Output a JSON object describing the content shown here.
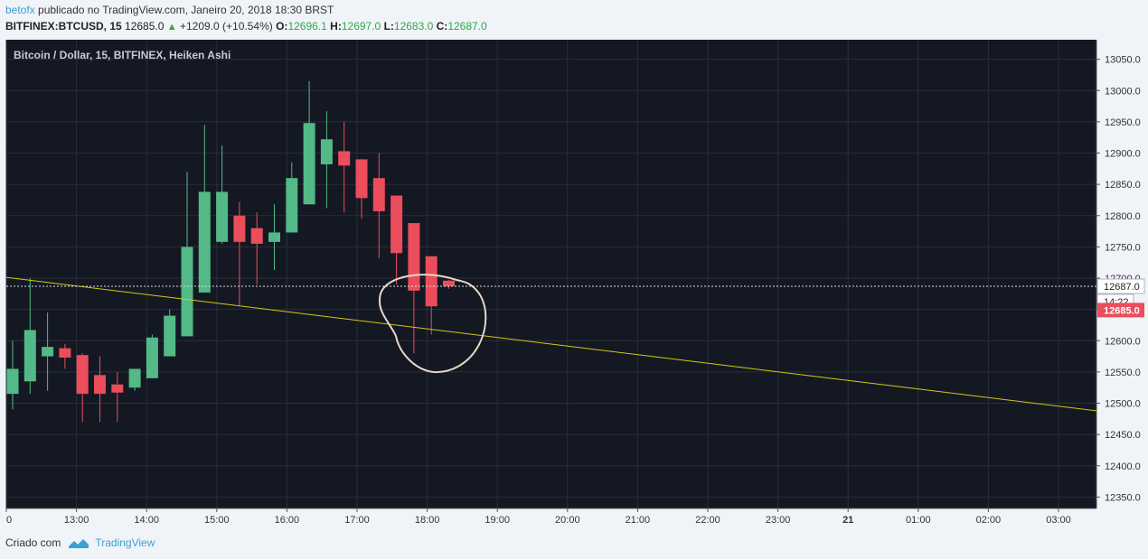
{
  "header": {
    "author": "betofx",
    "published_text": " publicado no TradingView.com, Janeiro 20, 2018 18:30 BRST",
    "symbol": "BITFINEX:BTCUSD, 15",
    "last": "12685.0",
    "change": "+1209.0 (+10.54%)",
    "o_label": "O:",
    "o_value": "12696.1",
    "h_label": "H:",
    "h_value": "12697.0",
    "l_label": "L:",
    "l_value": "12683.0",
    "c_label": "C:",
    "c_value": "12687.0"
  },
  "chart_data": {
    "type": "candlestick",
    "title": "Bitcoin / Dollar, 15, BITFINEX, Heiken Ashi",
    "y_ticks": [
      12350,
      12400,
      12450,
      12500,
      12550,
      12600,
      12650,
      12700,
      12750,
      12800,
      12850,
      12900,
      12950,
      13000,
      13050
    ],
    "x_ticks": [
      "0",
      "13:00",
      "14:00",
      "15:00",
      "16:00",
      "17:00",
      "18:00",
      "19:00",
      "20:00",
      "21:00",
      "22:00",
      "23:00",
      "21",
      "01:00",
      "02:00",
      "03:00"
    ],
    "ylim": [
      12315,
      13080
    ],
    "candles": [
      {
        "o": 12515,
        "h": 12600,
        "l": 12490,
        "c": 12555
      },
      {
        "o": 12535,
        "h": 12700,
        "l": 12515,
        "c": 12617
      },
      {
        "o": 12575,
        "h": 12645,
        "l": 12520,
        "c": 12590
      },
      {
        "o": 12588,
        "h": 12595,
        "l": 12555,
        "c": 12573
      },
      {
        "o": 12577,
        "h": 12580,
        "l": 12470,
        "c": 12515
      },
      {
        "o": 12545,
        "h": 12575,
        "l": 12470,
        "c": 12515
      },
      {
        "o": 12530,
        "h": 12550,
        "l": 12470,
        "c": 12517
      },
      {
        "o": 12525,
        "h": 12555,
        "l": 12520,
        "c": 12555
      },
      {
        "o": 12540,
        "h": 12610,
        "l": 12540,
        "c": 12605
      },
      {
        "o": 12575,
        "h": 12650,
        "l": 12575,
        "c": 12640
      },
      {
        "o": 12607,
        "h": 12870,
        "l": 12607,
        "c": 12750
      },
      {
        "o": 12677,
        "h": 12945,
        "l": 12677,
        "c": 12838
      },
      {
        "o": 12758,
        "h": 12912,
        "l": 12755,
        "c": 12838
      },
      {
        "o": 12800,
        "h": 12822,
        "l": 12655,
        "c": 12758
      },
      {
        "o": 12780,
        "h": 12805,
        "l": 12690,
        "c": 12755
      },
      {
        "o": 12758,
        "h": 12818,
        "l": 12713,
        "c": 12773
      },
      {
        "o": 12773,
        "h": 12885,
        "l": 12773,
        "c": 12860
      },
      {
        "o": 12818,
        "h": 13015,
        "l": 12818,
        "c": 12948
      },
      {
        "o": 12882,
        "h": 12967,
        "l": 12812,
        "c": 12922
      },
      {
        "o": 12903,
        "h": 12950,
        "l": 12805,
        "c": 12880
      },
      {
        "o": 12890,
        "h": 12890,
        "l": 12795,
        "c": 12828
      },
      {
        "o": 12860,
        "h": 12900,
        "l": 12732,
        "c": 12807
      },
      {
        "o": 12832,
        "h": 12832,
        "l": 12690,
        "c": 12740
      },
      {
        "o": 12788,
        "h": 12788,
        "l": 12580,
        "c": 12680
      },
      {
        "o": 12735,
        "h": 12735,
        "l": 12610,
        "c": 12655
      },
      {
        "o": 12696,
        "h": 12697,
        "l": 12683,
        "c": 12687
      }
    ],
    "colors": {
      "up": "#53b987",
      "down": "#eb4d5c",
      "background": "#141823",
      "grid": "#2a2e39",
      "trendline": "#d4c914",
      "annotation": "#e8d8c4"
    },
    "price_labels": {
      "last_close": "12687.0",
      "countdown": "14:22",
      "current": "12685.0"
    },
    "trendline": {
      "from": {
        "candle": 0,
        "price": 12700
      },
      "to": {
        "candle": 65,
        "price": 12478
      }
    },
    "annotation": "hand-drawn circle around the last candles"
  },
  "footer": {
    "created_with": "Criado com",
    "brand": "TradingView"
  }
}
